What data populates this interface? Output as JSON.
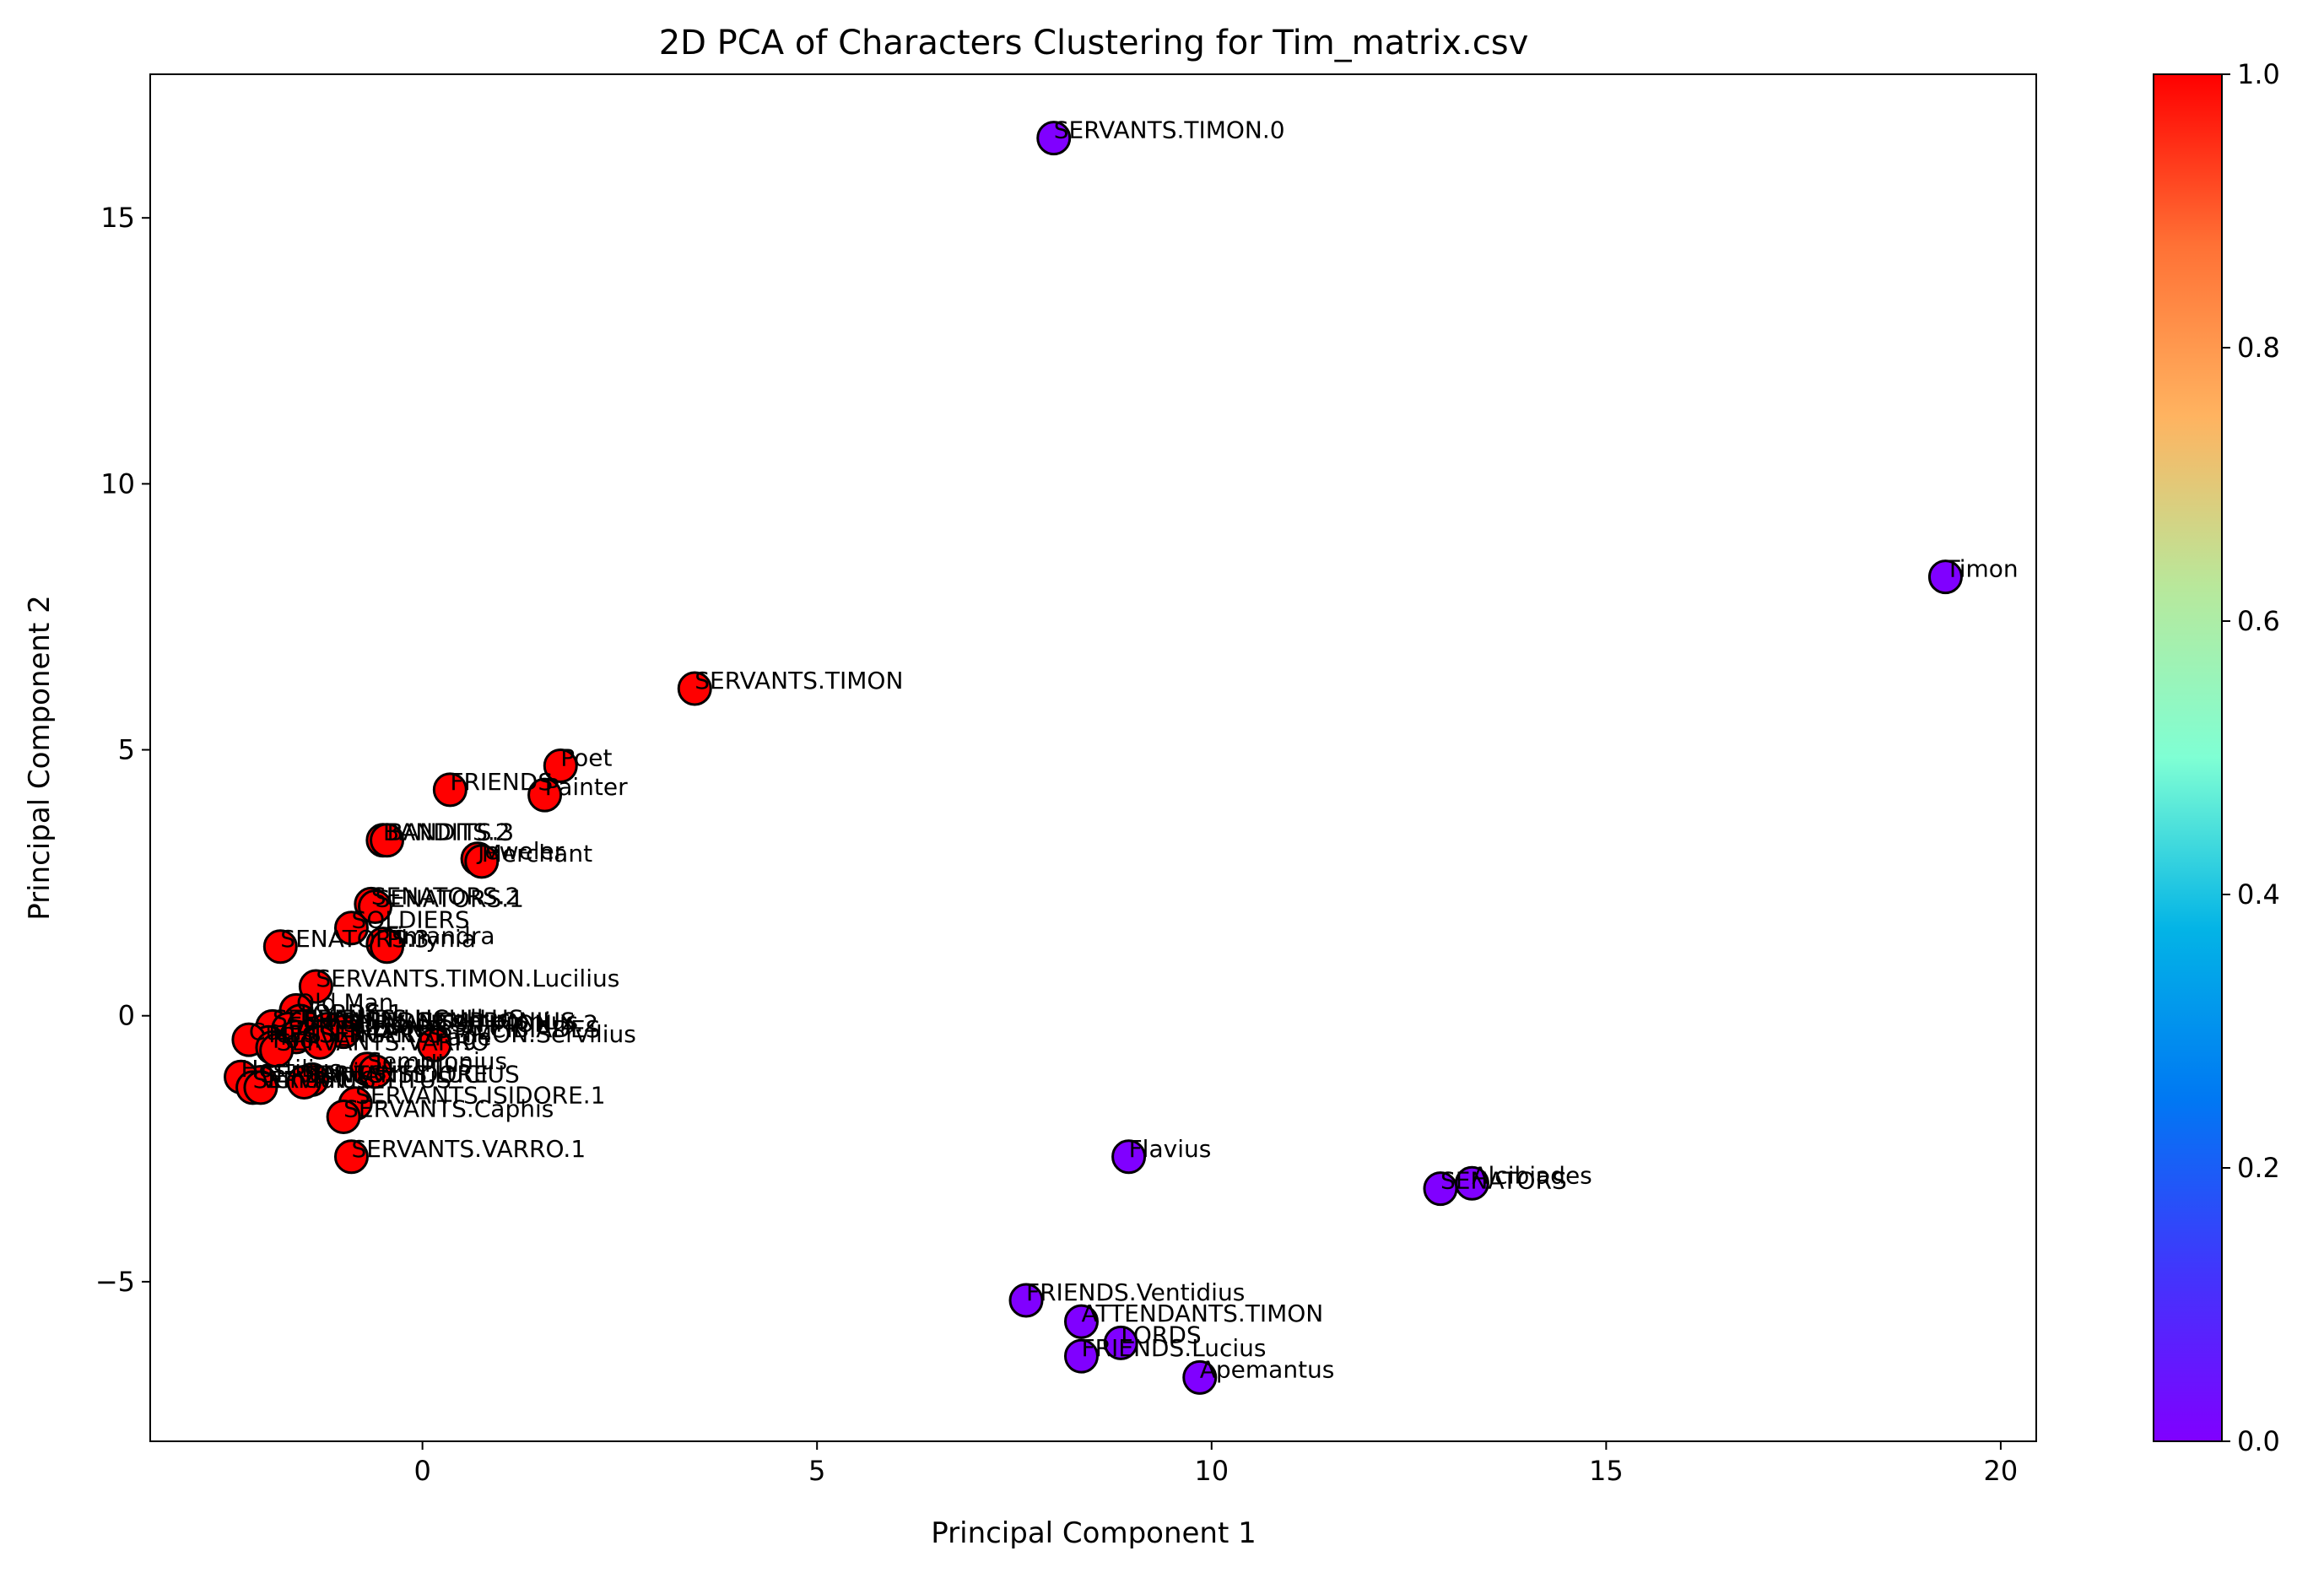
{
  "chart_data": {
    "type": "scatter",
    "title": "2D PCA of Characters Clustering for Tim_matrix.csv",
    "xlabel": "Principal Component 1",
    "ylabel": "Principal Component 2",
    "xlim": [
      -3.45,
      20.45
    ],
    "ylim": [
      -8.0,
      17.7
    ],
    "xticks": [
      0,
      5,
      10,
      15,
      20
    ],
    "yticks": [
      -5,
      0,
      5,
      10,
      15
    ],
    "xtick_labels": [
      "0",
      "5",
      "10",
      "15",
      "20"
    ],
    "ytick_labels": [
      "−5",
      "0",
      "5",
      "10",
      "15"
    ],
    "grid": false,
    "colorbar": {
      "colormap": "rainbow",
      "range": [
        0.0,
        1.0
      ],
      "ticks": [
        0.0,
        0.2,
        0.4,
        0.6,
        0.8,
        1.0
      ],
      "tick_labels": [
        "0.0",
        "0.2",
        "0.4",
        "0.6",
        "0.8",
        "1.0"
      ]
    },
    "colors": {
      "cluster_0": "#8000ff",
      "cluster_1": "#ff0000",
      "marker_edge": "#000000"
    },
    "points": [
      {
        "label": "SERVANTS.TIMON.0",
        "x": 8.0,
        "y": 16.5,
        "cluster": 0
      },
      {
        "label": "Timon",
        "x": 19.3,
        "y": 8.25,
        "cluster": 0
      },
      {
        "label": "Flavius",
        "x": 8.95,
        "y": -2.65,
        "cluster": 0
      },
      {
        "label": "Alcibiades",
        "x": 13.3,
        "y": -3.15,
        "cluster": 0
      },
      {
        "label": "SENATORS",
        "x": 12.9,
        "y": -3.25,
        "cluster": 0
      },
      {
        "label": "FRIENDS.Ventidius",
        "x": 7.65,
        "y": -5.35,
        "cluster": 0
      },
      {
        "label": "ATTENDANTS.TIMON",
        "x": 8.35,
        "y": -5.75,
        "cluster": 0
      },
      {
        "label": "LORDS",
        "x": 8.85,
        "y": -6.15,
        "cluster": 0
      },
      {
        "label": "FRIENDS.Lucius",
        "x": 8.35,
        "y": -6.4,
        "cluster": 0
      },
      {
        "label": "Apemantus",
        "x": 9.85,
        "y": -6.8,
        "cluster": 0
      },
      {
        "label": "SERVANTS.TIMON",
        "x": 3.45,
        "y": 6.15,
        "cluster": 1
      },
      {
        "label": "Poet",
        "x": 1.75,
        "y": 4.7,
        "cluster": 1
      },
      {
        "label": "FRIENDS",
        "x": 0.35,
        "y": 4.25,
        "cluster": 1
      },
      {
        "label": "Painter",
        "x": 1.55,
        "y": 4.15,
        "cluster": 1
      },
      {
        "label": "BANDITS.2",
        "x": -0.5,
        "y": 3.3,
        "cluster": 1
      },
      {
        "label": "BANDITS.3",
        "x": -0.45,
        "y": 3.3,
        "cluster": 1
      },
      {
        "label": "Jeweler",
        "x": 0.7,
        "y": 2.95,
        "cluster": 1
      },
      {
        "label": "Merchant",
        "x": 0.75,
        "y": 2.9,
        "cluster": 1
      },
      {
        "label": "SENATORS.2",
        "x": -0.65,
        "y": 2.1,
        "cluster": 1
      },
      {
        "label": "SENATORS.1",
        "x": -0.6,
        "y": 2.05,
        "cluster": 1
      },
      {
        "label": "SOLDIERS",
        "x": -0.9,
        "y": 1.65,
        "cluster": 1
      },
      {
        "label": "SENATORS.3",
        "x": -1.8,
        "y": 1.3,
        "cluster": 1
      },
      {
        "label": "Timandra",
        "x": -0.5,
        "y": 1.35,
        "cluster": 1
      },
      {
        "label": "Phrynia",
        "x": -0.45,
        "y": 1.3,
        "cluster": 1
      },
      {
        "label": "SERVANTS.TIMON.Lucilius",
        "x": -1.35,
        "y": 0.55,
        "cluster": 1
      },
      {
        "label": "Old Man",
        "x": -1.6,
        "y": 0.1,
        "cluster": 1
      },
      {
        "label": "LORDS.1",
        "x": -1.55,
        "y": -0.1,
        "cluster": 1
      },
      {
        "label": "SERVANTS.LUCULLUS",
        "x": -1.9,
        "y": -0.2,
        "cluster": 1
      },
      {
        "label": "SERVANTS.SEMPRONIUS",
        "x": -1.7,
        "y": -0.25,
        "cluster": 1
      },
      {
        "label": "FRIENDS.Lucullus",
        "x": -1.5,
        "y": -0.2,
        "cluster": 1
      },
      {
        "label": "FRIENDS.Sempronius",
        "x": -1.2,
        "y": -0.25,
        "cluster": 1
      },
      {
        "label": "SERVANTS.TIMON.X.2",
        "x": -1.0,
        "y": -0.3,
        "cluster": 1
      },
      {
        "label": "ATTENDANTS.ALCIBIADES",
        "x": -1.6,
        "y": -0.4,
        "cluster": 1
      },
      {
        "label": "MESSENGERS",
        "x": -1.95,
        "y": -0.5,
        "cluster": 1
      },
      {
        "label": "SERVANTS.TIMON.Servilius",
        "x": -1.3,
        "y": -0.5,
        "cluster": 1
      },
      {
        "label": "Cupid",
        "x": -2.2,
        "y": -0.45,
        "cluster": 1
      },
      {
        "label": "Page",
        "x": 0.15,
        "y": -0.55,
        "cluster": 1
      },
      {
        "label": "Fool",
        "x": -1.9,
        "y": -0.6,
        "cluster": 1
      },
      {
        "label": "SERVANTS.VARRO",
        "x": -1.85,
        "y": -0.65,
        "cluster": 1
      },
      {
        "label": "Sempronius",
        "x": -0.7,
        "y": -1.0,
        "cluster": 1
      },
      {
        "label": "Lucullus",
        "x": -0.6,
        "y": -1.05,
        "cluster": 1
      },
      {
        "label": "Lucius",
        "x": -1.4,
        "y": -1.2,
        "cluster": 1
      },
      {
        "label": "SERVANTS.ISIDORE",
        "x": -2.05,
        "y": -1.25,
        "cluster": 1
      },
      {
        "label": "SERVANTS.LUCIUS",
        "x": -1.5,
        "y": -1.25,
        "cluster": 1
      },
      {
        "label": "Hostilius",
        "x": -2.3,
        "y": -1.15,
        "cluster": 1
      },
      {
        "label": "SERVANTS.TITUS",
        "x": -2.15,
        "y": -1.35,
        "cluster": 1
      },
      {
        "label": "Ventidius",
        "x": -2.05,
        "y": -1.35,
        "cluster": 1
      },
      {
        "label": "SERVANTS.ISIDORE.1",
        "x": -0.85,
        "y": -1.65,
        "cluster": 1
      },
      {
        "label": "SERVANTS.Caphis",
        "x": -1.0,
        "y": -1.9,
        "cluster": 1
      },
      {
        "label": "SERVANTS.VARRO.1",
        "x": -0.9,
        "y": -2.65,
        "cluster": 1
      }
    ]
  }
}
